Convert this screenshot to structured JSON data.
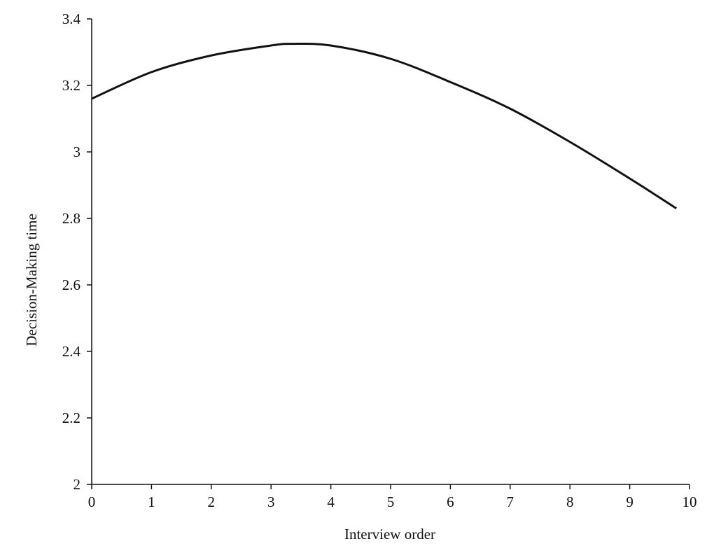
{
  "chart_data": {
    "type": "line",
    "xlabel": "Interview order",
    "ylabel": "Decision-Making time",
    "series": [
      {
        "name": "Decision-Making time",
        "color": "#111111",
        "x": [
          0,
          1,
          2,
          3,
          3.35,
          4,
          5,
          6,
          7,
          8,
          9,
          9.78
        ],
        "values": [
          3.16,
          3.24,
          3.29,
          3.32,
          3.325,
          3.32,
          3.28,
          3.21,
          3.13,
          3.03,
          2.92,
          2.83
        ]
      }
    ],
    "xlim": [
      0,
      10
    ],
    "xticks": [
      0,
      1,
      2,
      3,
      4,
      5,
      6,
      7,
      8,
      9,
      10
    ],
    "ylim": [
      2,
      3.4
    ],
    "yticks": [
      2,
      2.2,
      2.4,
      2.6,
      2.8,
      3,
      3.2,
      3.4
    ],
    "grid": false
  }
}
